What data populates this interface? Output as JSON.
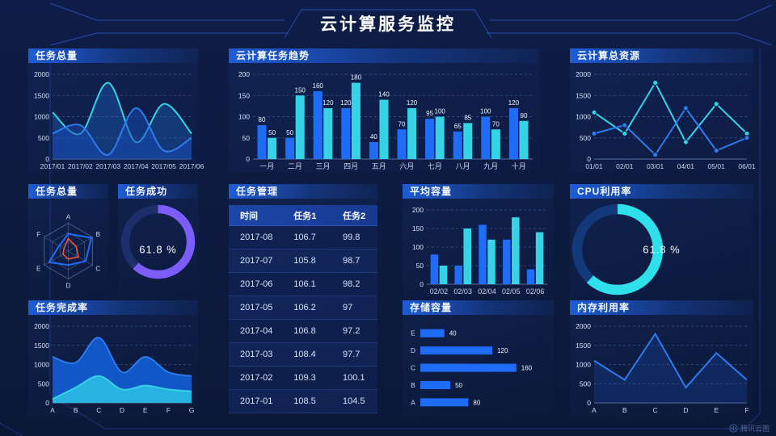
{
  "header": {
    "title": "云计算服务监控"
  },
  "footer": {
    "brand": "腾讯云图"
  },
  "colors": {
    "background": "#0d1b42",
    "panel_header_blue": "#1e5cd6",
    "frame_line": "#2f54c0",
    "series_blue": "#1f6cf9",
    "series_cyan": "#35d3e6",
    "donut_purple": "#7c5cfa",
    "donut_cyan": "#2de0ea",
    "radar_red": "#ff5436"
  },
  "panels": {
    "task_total_line": {
      "title": "任务总量"
    },
    "task_trend": {
      "title": "云计算任务趋势"
    },
    "total_resource": {
      "title": "云计算总资源"
    },
    "task_radar": {
      "title": "任务总量"
    },
    "task_success": {
      "title": "任务成功",
      "value": "61.8 %"
    },
    "task_table": {
      "title": "任务管理"
    },
    "avg_capacity": {
      "title": "平均容量"
    },
    "cpu_usage": {
      "title": "CPU利用率",
      "value": "61.8 %"
    },
    "task_completion": {
      "title": "任务完成率"
    },
    "storage": {
      "title": "存储容量"
    },
    "memory": {
      "title": "内存利用率"
    }
  },
  "table": {
    "columns": [
      "时间",
      "任务1",
      "任务2"
    ],
    "rows": [
      [
        "2017-08",
        "106.7",
        "99.8"
      ],
      [
        "2017-07",
        "105.8",
        "98.7"
      ],
      [
        "2017-06",
        "106.1",
        "98.2"
      ],
      [
        "2017-05",
        "106.2",
        "97"
      ],
      [
        "2017-04",
        "106.8",
        "97.2"
      ],
      [
        "2017-03",
        "108.4",
        "97.7"
      ],
      [
        "2017-02",
        "109.3",
        "100.1"
      ],
      [
        "2017-01",
        "108.5",
        "104.5"
      ]
    ]
  },
  "chart_data": [
    {
      "id": "task-total-line",
      "type": "smoothline",
      "title": "任务总量",
      "categories": [
        "2017/01",
        "2017/02",
        "2017/03",
        "2017/04",
        "2017/05",
        "2017/06"
      ],
      "series": [
        {
          "name": "cyan",
          "color": "#35d3e6",
          "fill": "rgba(30,110,210,0.35)",
          "values": [
            1100,
            600,
            1800,
            400,
            1300,
            600
          ]
        },
        {
          "name": "blue",
          "color": "#2e7bf0",
          "fill": "rgba(23,75,185,0.50)",
          "values": [
            600,
            800,
            100,
            1200,
            200,
            500
          ]
        }
      ],
      "ylim": [
        0,
        2000
      ],
      "yticks": [
        0,
        500,
        1000,
        1500,
        2000
      ],
      "grid": "dashed"
    },
    {
      "id": "task-trend",
      "type": "bar",
      "title": "云计算任务趋势",
      "categories": [
        "一月",
        "二月",
        "三月",
        "四月",
        "五月",
        "六月",
        "七月",
        "八月",
        "九月",
        "十月"
      ],
      "series": [
        {
          "name": "任务1",
          "color": "#1f6cf9",
          "values": [
            80,
            50,
            160,
            120,
            40,
            70,
            95,
            65,
            100,
            120
          ]
        },
        {
          "name": "任务2",
          "color": "#35d3e6",
          "values": [
            50,
            150,
            120,
            180,
            140,
            120,
            100,
            85,
            70,
            90
          ]
        }
      ],
      "ylim": [
        0,
        200
      ],
      "yticks": [
        0,
        50,
        100,
        150,
        200
      ],
      "show_labels": true
    },
    {
      "id": "total-resource",
      "type": "line",
      "title": "云计算总资源",
      "markers": true,
      "categories": [
        "01/01",
        "02/01",
        "03/01",
        "04/01",
        "05/01",
        "06/01"
      ],
      "series": [
        {
          "name": "cyan",
          "color": "#35d3e6",
          "values": [
            1100,
            600,
            1800,
            400,
            1300,
            600
          ]
        },
        {
          "name": "blue",
          "color": "#2e7bf0",
          "values": [
            600,
            800,
            100,
            1200,
            200,
            500
          ]
        }
      ],
      "ylim": [
        0,
        2000
      ],
      "yticks": [
        0,
        500,
        1000,
        1500,
        2000
      ],
      "grid": "dashed"
    },
    {
      "id": "task-radar",
      "type": "radar",
      "title": "任务总量",
      "axes": [
        "A",
        "B",
        "C",
        "D",
        "E",
        "F"
      ],
      "max": 100,
      "series": [
        {
          "name": "blue",
          "color": "#1f6cf9",
          "values": [
            62,
            95,
            72,
            50,
            80,
            38
          ]
        },
        {
          "name": "red",
          "color": "#ff5436",
          "values": [
            45,
            33,
            42,
            28,
            22,
            18
          ]
        }
      ]
    },
    {
      "id": "task-success",
      "type": "donut",
      "title": "任务成功",
      "percent": 61.8,
      "label": "61.8 %",
      "color": "#7c5cfa",
      "track": "#1c2e6b"
    },
    {
      "id": "avg-capacity",
      "type": "bar",
      "title": "平均容量",
      "categories": [
        "02/02",
        "02/03",
        "02/04",
        "02/05",
        "02/06"
      ],
      "series": [
        {
          "name": "blue",
          "color": "#1f6cf9",
          "values": [
            80,
            50,
            160,
            120,
            40
          ]
        },
        {
          "name": "cyan",
          "color": "#35d3e6",
          "values": [
            50,
            150,
            120,
            180,
            140
          ]
        }
      ],
      "ylim": [
        0,
        200
      ],
      "yticks": [
        0,
        50,
        100,
        150,
        200
      ],
      "show_labels": false
    },
    {
      "id": "cpu-usage",
      "type": "donut",
      "title": "CPU利用率",
      "percent": 61.8,
      "label": "61.8 %",
      "color": "#2de0ea",
      "track": "#13397b"
    },
    {
      "id": "task-completion",
      "type": "area",
      "title": "任务完成率",
      "categories": [
        "A",
        "B",
        "C",
        "D",
        "E",
        "F",
        "G"
      ],
      "series": [
        {
          "name": "blue",
          "color": "#2e7bf0",
          "fill": "#1257c8",
          "values": [
            1200,
            1050,
            1700,
            800,
            1200,
            800,
            700
          ]
        },
        {
          "name": "cyan",
          "color": "#35d3e6",
          "fill": "#28b2e2",
          "values": [
            100,
            400,
            700,
            350,
            450,
            350,
            300
          ]
        }
      ],
      "ylim": [
        0,
        2000
      ],
      "yticks": [
        0,
        500,
        1000,
        1500,
        2000
      ],
      "grid": "dashed"
    },
    {
      "id": "storage",
      "type": "hbar",
      "title": "存储容量",
      "categories": [
        "E",
        "D",
        "C",
        "B",
        "A"
      ],
      "values": [
        40,
        120,
        160,
        50,
        80
      ],
      "color": "#1f6cf9"
    },
    {
      "id": "memory",
      "type": "line",
      "title": "内存利用率",
      "markers": false,
      "fill": "rgba(28,80,190,0.25)",
      "categories": [
        "A",
        "B",
        "C",
        "D",
        "E",
        "F"
      ],
      "series": [
        {
          "name": "blue",
          "color": "#2e7bf0",
          "values": [
            1100,
            600,
            1800,
            400,
            1300,
            600
          ]
        }
      ],
      "ylim": [
        0,
        2000
      ],
      "yticks": [
        0,
        500,
        1000,
        1500,
        2000
      ],
      "grid": "dashed"
    }
  ]
}
